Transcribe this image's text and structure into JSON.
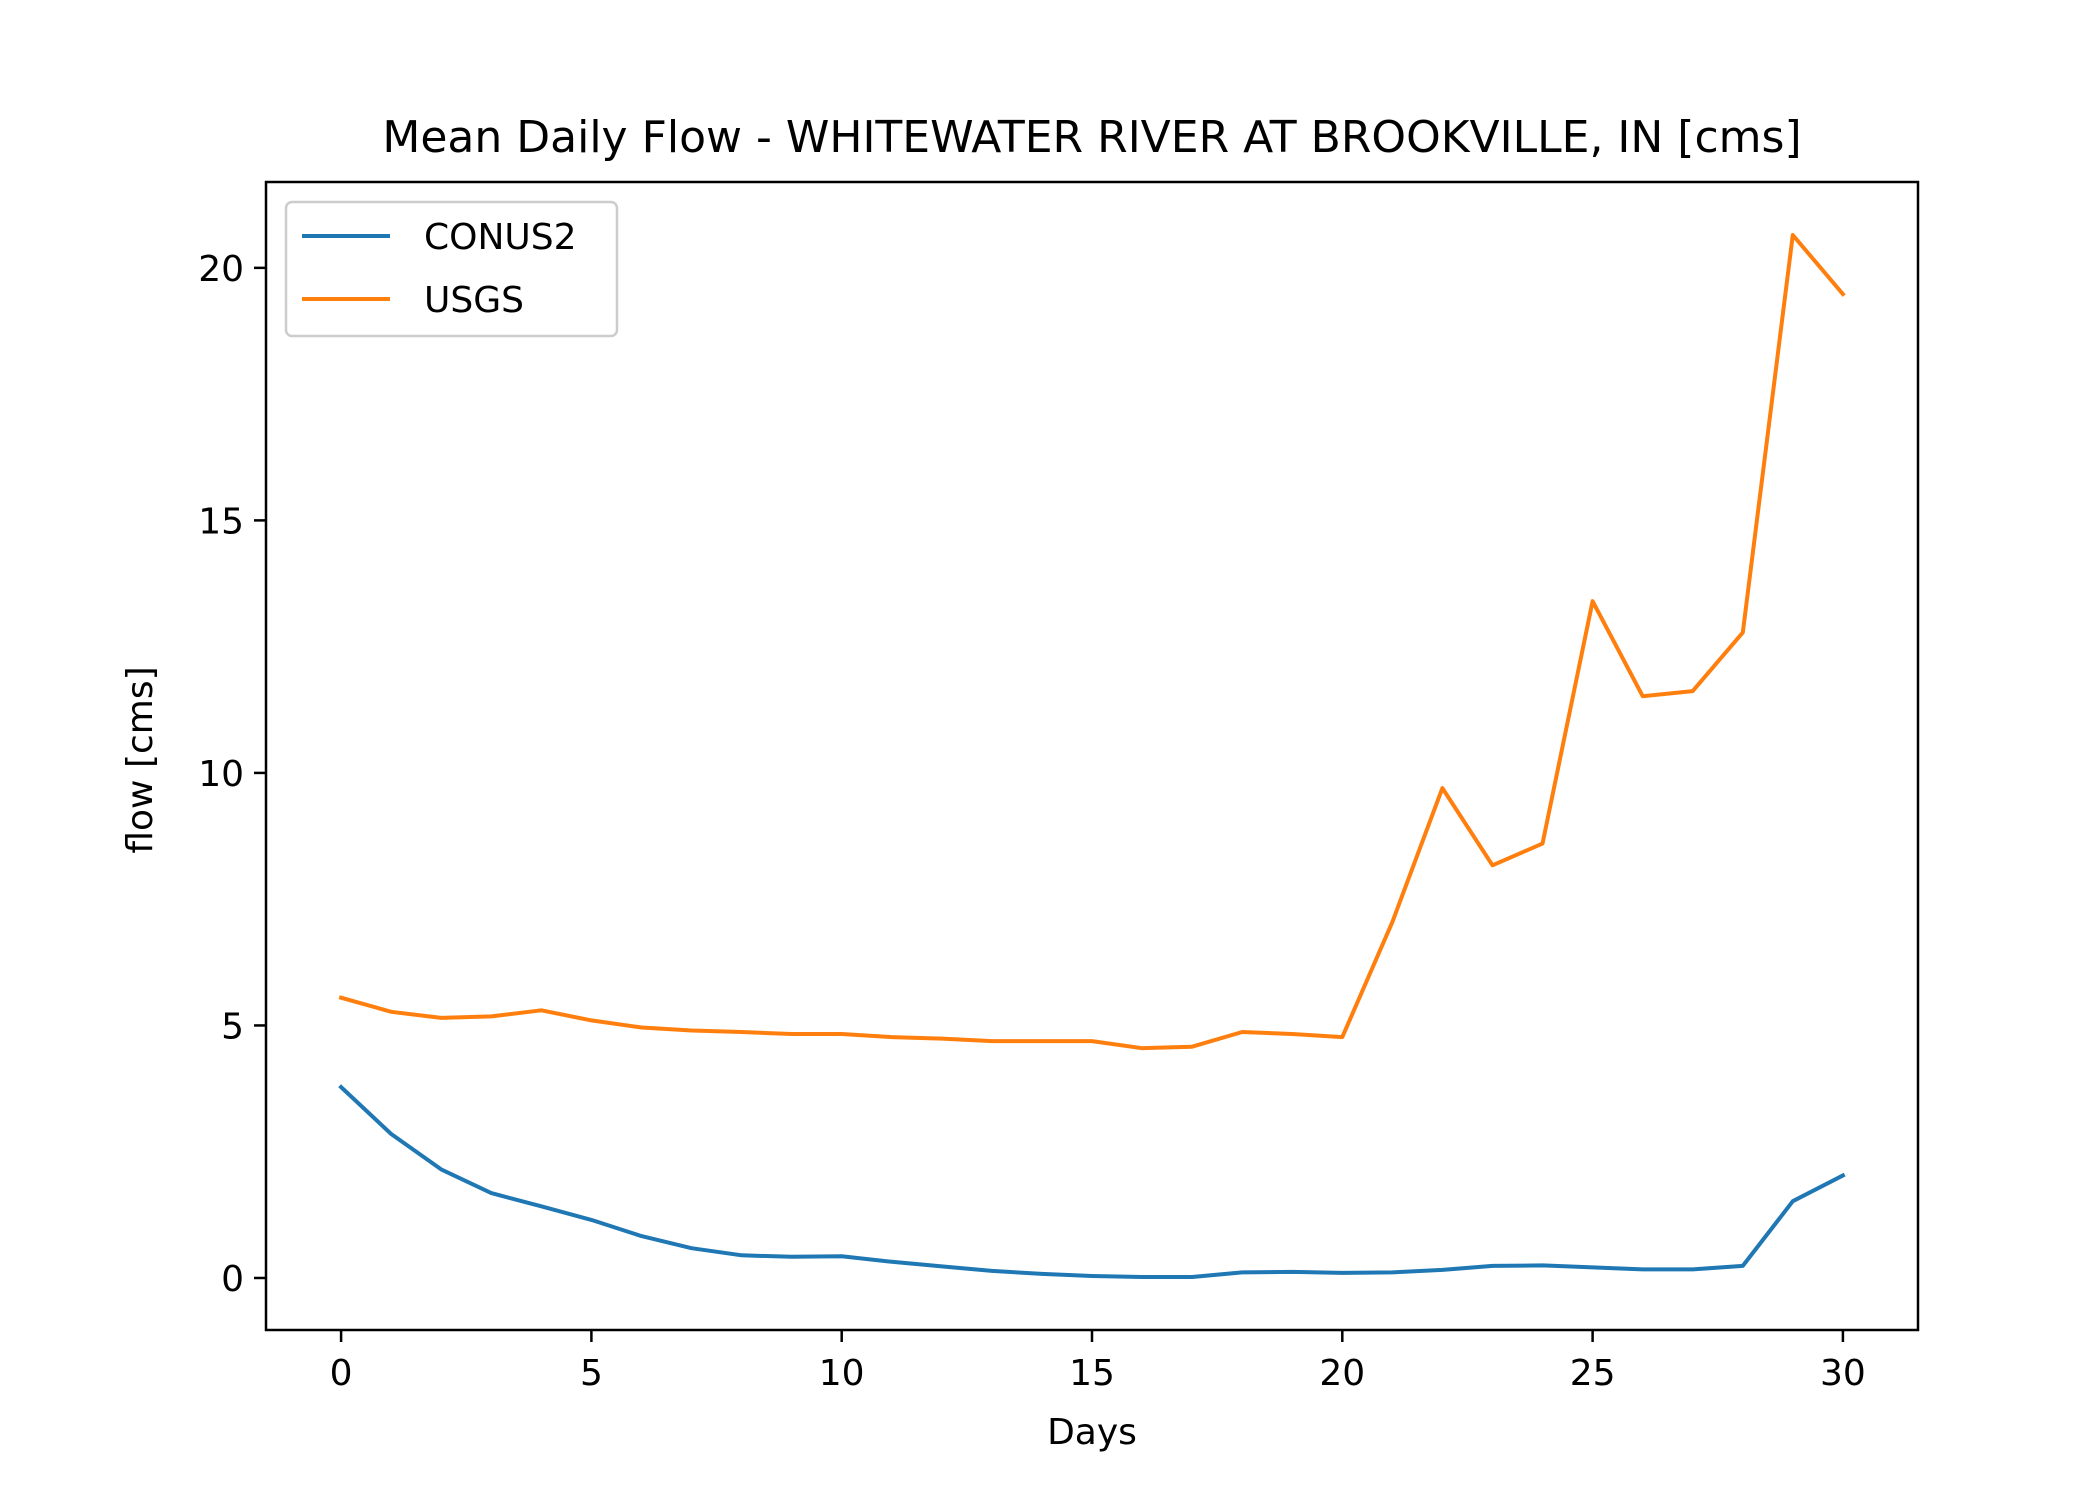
{
  "chart_data": {
    "type": "line",
    "title": "Mean Daily Flow - WHITEWATER RIVER AT BROOKVILLE, IN [cms]",
    "xlabel": "Days",
    "ylabel": "flow [cms]",
    "xlim": [
      -1.5,
      31.5
    ],
    "ylim": [
      -1.03,
      21.7
    ],
    "xticks": [
      0,
      5,
      10,
      15,
      20,
      25,
      30
    ],
    "yticks": [
      0,
      5,
      10,
      15,
      20
    ],
    "grid": false,
    "legend_position": "upper-left",
    "x": [
      0,
      1,
      2,
      3,
      4,
      5,
      6,
      7,
      8,
      9,
      10,
      11,
      12,
      13,
      14,
      15,
      16,
      17,
      18,
      19,
      20,
      21,
      22,
      23,
      24,
      25,
      26,
      27,
      28,
      29,
      30
    ],
    "series": [
      {
        "name": "CONUS2",
        "color": "#1f77b4",
        "values": [
          3.78,
          2.85,
          2.15,
          1.68,
          1.42,
          1.15,
          0.83,
          0.59,
          0.45,
          0.42,
          0.43,
          0.32,
          0.23,
          0.14,
          0.08,
          0.04,
          0.02,
          0.02,
          0.11,
          0.12,
          0.1,
          0.11,
          0.16,
          0.24,
          0.25,
          0.21,
          0.17,
          0.17,
          0.24,
          1.52,
          2.03
        ]
      },
      {
        "name": "USGS",
        "color": "#ff7f0e",
        "values": [
          5.55,
          5.27,
          5.15,
          5.18,
          5.3,
          5.1,
          4.96,
          4.9,
          4.87,
          4.83,
          4.83,
          4.77,
          4.74,
          4.69,
          4.69,
          4.69,
          4.55,
          4.58,
          4.87,
          4.83,
          4.77,
          7.05,
          9.7,
          8.17,
          8.6,
          13.4,
          11.52,
          11.62,
          12.78,
          20.65,
          19.48
        ]
      }
    ]
  }
}
